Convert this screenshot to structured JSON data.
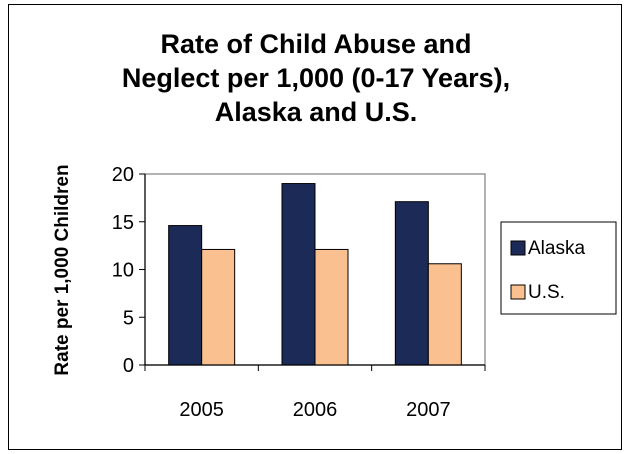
{
  "chart_data": {
    "type": "bar",
    "title_lines": [
      "Rate of Child Abuse and",
      "Neglect per 1,000 (0-17 Years),",
      "Alaska and U.S."
    ],
    "xlabel": "",
    "ylabel": "Rate per 1,000 Children",
    "categories": [
      "2005",
      "2006",
      "2007"
    ],
    "series": [
      {
        "name": "Alaska",
        "values": [
          14.6,
          19.0,
          17.1
        ],
        "color": "#1b2a57"
      },
      {
        "name": "U.S.",
        "values": [
          12.1,
          12.1,
          10.6
        ],
        "color": "#fac090"
      }
    ],
    "ylim": [
      0,
      20
    ],
    "yticks": [
      "0",
      "5",
      "10",
      "15",
      "20"
    ],
    "grid": false,
    "legend_position": "right"
  }
}
